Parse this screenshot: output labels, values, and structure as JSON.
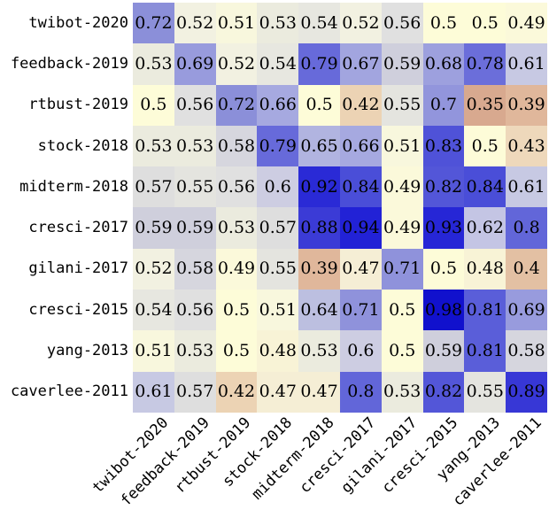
{
  "figure": {
    "background": "#ffffff",
    "text_color": "#000000"
  },
  "chart_data": {
    "type": "heatmap",
    "title": "",
    "xlabel": "",
    "ylabel": "",
    "legend": "none",
    "grid": false,
    "row_labels": [
      "twibot-2020",
      "feedback-2019",
      "rtbust-2019",
      "stock-2018",
      "midterm-2018",
      "cresci-2017",
      "gilani-2017",
      "cresci-2015",
      "yang-2013",
      "caverlee-2011"
    ],
    "col_labels": [
      "twibot-2020",
      "feedback-2019",
      "rtbust-2019",
      "stock-2018",
      "midterm-2018",
      "cresci-2017",
      "gilani-2017",
      "cresci-2015",
      "yang-2013",
      "caverlee-2011"
    ],
    "values": [
      [
        0.72,
        0.52,
        0.51,
        0.53,
        0.54,
        0.52,
        0.56,
        0.5,
        0.5,
        0.49
      ],
      [
        0.53,
        0.69,
        0.52,
        0.54,
        0.79,
        0.67,
        0.59,
        0.68,
        0.78,
        0.61
      ],
      [
        0.5,
        0.56,
        0.72,
        0.66,
        0.5,
        0.42,
        0.55,
        0.7,
        0.35,
        0.39
      ],
      [
        0.53,
        0.53,
        0.58,
        0.79,
        0.65,
        0.66,
        0.51,
        0.83,
        0.5,
        0.43
      ],
      [
        0.57,
        0.55,
        0.56,
        0.6,
        0.92,
        0.84,
        0.49,
        0.82,
        0.84,
        0.61
      ],
      [
        0.59,
        0.59,
        0.53,
        0.57,
        0.88,
        0.94,
        0.49,
        0.93,
        0.62,
        0.8
      ],
      [
        0.52,
        0.58,
        0.49,
        0.55,
        0.39,
        0.47,
        0.71,
        0.5,
        0.48,
        0.4
      ],
      [
        0.54,
        0.56,
        0.5,
        0.51,
        0.64,
        0.71,
        0.5,
        0.98,
        0.81,
        0.69
      ],
      [
        0.51,
        0.53,
        0.5,
        0.48,
        0.53,
        0.6,
        0.5,
        0.59,
        0.81,
        0.58
      ],
      [
        0.61,
        0.57,
        0.42,
        0.47,
        0.47,
        0.8,
        0.53,
        0.82,
        0.55,
        0.89
      ]
    ],
    "value_range_shown": [
      0.35,
      0.98
    ],
    "cell_text_color": "#000000",
    "colormap_anchors": [
      [
        0.35,
        "#d8a98f"
      ],
      [
        0.39,
        "#e0b79b"
      ],
      [
        0.4,
        "#e3c0a3"
      ],
      [
        0.42,
        "#ecd3b4"
      ],
      [
        0.47,
        "#f5eed5"
      ],
      [
        0.48,
        "#f8f3d6"
      ],
      [
        0.49,
        "#fbf9da"
      ],
      [
        0.5,
        "#fdfcd8"
      ],
      [
        0.51,
        "#f8f7dd"
      ],
      [
        0.52,
        "#f2f1e1"
      ],
      [
        0.53,
        "#ebebde"
      ],
      [
        0.54,
        "#e7e7e0"
      ],
      [
        0.55,
        "#e4e4df"
      ],
      [
        0.56,
        "#e0e0e0"
      ],
      [
        0.57,
        "#dedede"
      ],
      [
        0.58,
        "#d6d6de"
      ],
      [
        0.59,
        "#cfcfdc"
      ],
      [
        0.6,
        "#cdcde2"
      ],
      [
        0.61,
        "#c7c9e3"
      ],
      [
        0.62,
        "#c4c5e4"
      ],
      [
        0.64,
        "#bcbfe0"
      ],
      [
        0.66,
        "#a6a9e0"
      ],
      [
        0.68,
        "#9da0de"
      ],
      [
        0.7,
        "#9295dc"
      ],
      [
        0.72,
        "#8b8fd9"
      ],
      [
        0.78,
        "#6b6eda"
      ],
      [
        0.8,
        "#6266d9"
      ],
      [
        0.82,
        "#5356d8"
      ],
      [
        0.84,
        "#4a4ed8"
      ],
      [
        0.88,
        "#3b3bd6"
      ],
      [
        0.92,
        "#2a2ad6"
      ],
      [
        0.94,
        "#2222d6"
      ],
      [
        0.98,
        "#1111cd"
      ]
    ]
  }
}
